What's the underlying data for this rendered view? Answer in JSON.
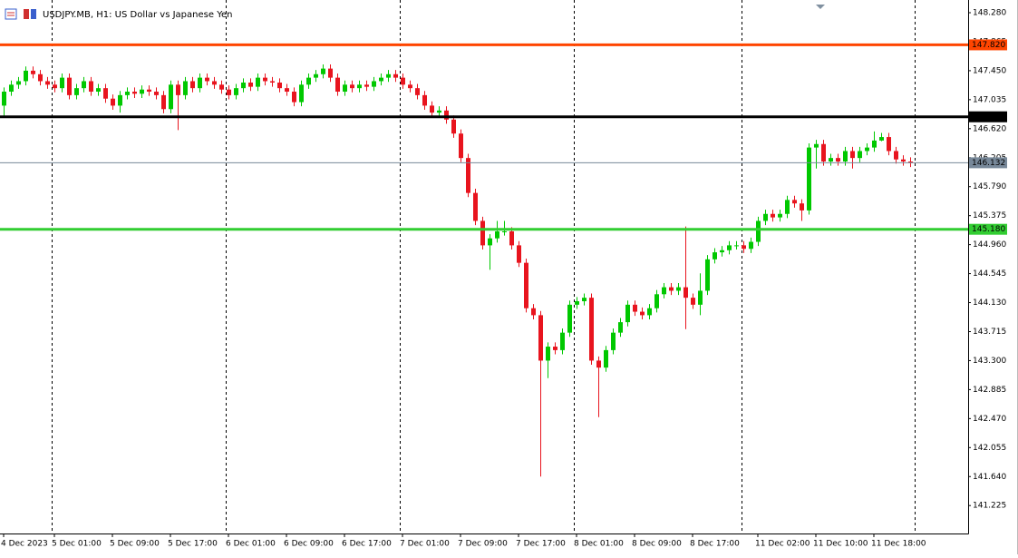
{
  "chart_data": {
    "type": "candlestick",
    "title": "USDJPY.MB, H1:  US Dollar vs Japanese Yen",
    "categories": [
      "4 Dec 2023",
      null,
      null,
      null,
      null,
      null,
      null,
      "5 Dec 01:00",
      null,
      null,
      null,
      null,
      null,
      null,
      null,
      "5 Dec 09:00",
      null,
      null,
      null,
      null,
      null,
      null,
      null,
      "5 Dec 17:00",
      null,
      null,
      null,
      null,
      null,
      null,
      null,
      "6 Dec 01:00",
      null,
      null,
      null,
      null,
      null,
      null,
      null,
      "6 Dec 09:00",
      null,
      null,
      null,
      null,
      null,
      null,
      null,
      "6 Dec 17:00",
      null,
      null,
      null,
      null,
      null,
      null,
      null,
      "7 Dec 01:00",
      null,
      null,
      null,
      null,
      null,
      null,
      null,
      "7 Dec 09:00",
      null,
      null,
      null,
      null,
      null,
      null,
      null,
      "7 Dec 17:00",
      null,
      null,
      null,
      null,
      null,
      null,
      null,
      "8 Dec 01:00",
      null,
      null,
      null,
      null,
      null,
      null,
      null,
      "8 Dec 09:00",
      null,
      null,
      null,
      null,
      null,
      null,
      null,
      "8 Dec 17:00",
      null,
      null,
      null,
      null,
      null,
      null,
      null,
      null,
      "11 Dec 02:00",
      null,
      null,
      null,
      null,
      null,
      null,
      null,
      "11 Dec 10:00",
      null,
      null,
      null,
      null,
      null,
      null,
      null,
      "11 Dec 18:00",
      null,
      null,
      null,
      null,
      null
    ],
    "open": [
      146.95,
      147.15,
      147.25,
      147.3,
      147.45,
      147.4,
      147.3,
      147.25,
      147.2,
      147.35,
      147.1,
      147.2,
      147.3,
      147.15,
      147.2,
      147.05,
      146.95,
      147.1,
      147.15,
      147.12,
      147.18,
      147.15,
      147.1,
      146.9,
      147.25,
      147.1,
      147.3,
      147.2,
      147.35,
      147.3,
      147.25,
      147.18,
      147.1,
      147.2,
      147.28,
      147.22,
      147.35,
      147.3,
      147.28,
      147.2,
      147.15,
      147.0,
      147.25,
      147.35,
      147.4,
      147.48,
      147.35,
      147.15,
      147.25,
      147.2,
      147.25,
      147.22,
      147.3,
      147.35,
      147.4,
      147.35,
      147.25,
      147.2,
      147.1,
      146.95,
      146.85,
      146.88,
      146.75,
      146.55,
      146.2,
      145.7,
      145.3,
      144.95,
      145.05,
      145.15,
      145.15,
      144.95,
      144.7,
      144.05,
      143.95,
      143.3,
      143.5,
      143.45,
      143.7,
      144.1,
      144.15,
      144.2,
      143.3,
      143.2,
      143.45,
      143.7,
      143.85,
      144.1,
      144.0,
      143.95,
      144.05,
      144.25,
      144.35,
      144.3,
      144.35,
      144.2,
      144.1,
      144.3,
      144.75,
      144.85,
      144.88,
      144.95,
      144.95,
      144.9,
      145.0,
      145.3,
      145.4,
      145.35,
      145.4,
      145.6,
      145.55,
      145.45,
      146.35,
      146.4,
      146.15,
      146.2,
      146.15,
      146.3,
      146.2,
      146.3,
      146.35,
      146.45,
      146.5,
      146.3,
      146.18,
      146.15
    ],
    "high": [
      147.21,
      147.31,
      147.36,
      147.51,
      147.51,
      147.46,
      147.36,
      147.31,
      147.41,
      147.41,
      147.26,
      147.36,
      147.36,
      147.26,
      147.26,
      147.11,
      147.16,
      147.21,
      147.21,
      147.24,
      147.24,
      147.21,
      147.16,
      147.31,
      147.31,
      147.36,
      147.36,
      147.41,
      147.41,
      147.36,
      147.31,
      147.24,
      147.26,
      147.34,
      147.34,
      147.41,
      147.41,
      147.36,
      147.34,
      147.26,
      147.21,
      147.31,
      147.41,
      147.46,
      147.54,
      147.54,
      147.41,
      147.31,
      147.31,
      147.31,
      147.31,
      147.36,
      147.41,
      147.46,
      147.46,
      147.41,
      147.31,
      147.26,
      147.16,
      147.01,
      146.94,
      146.94,
      146.81,
      146.61,
      146.26,
      145.76,
      145.36,
      145.11,
      145.3,
      145.3,
      145.21,
      145.01,
      144.76,
      144.11,
      144.01,
      143.56,
      143.56,
      143.76,
      144.16,
      144.21,
      144.26,
      144.26,
      143.36,
      143.51,
      143.76,
      143.91,
      144.16,
      144.16,
      144.06,
      144.11,
      144.31,
      144.41,
      144.41,
      144.41,
      145.22,
      144.26,
      144.55,
      144.81,
      144.91,
      144.94,
      145.01,
      145.01,
      145.01,
      145.06,
      145.36,
      145.46,
      145.46,
      145.46,
      145.66,
      145.66,
      145.61,
      146.41,
      146.46,
      146.46,
      146.26,
      146.26,
      146.36,
      146.36,
      146.36,
      146.41,
      146.58,
      146.56,
      146.56,
      146.36,
      146.24,
      146.21
    ],
    "low": [
      146.8,
      147.09,
      147.19,
      147.24,
      147.34,
      147.24,
      147.19,
      147.14,
      147.14,
      147.04,
      147.04,
      147.14,
      147.09,
      147.09,
      146.99,
      146.89,
      146.85,
      147.04,
      147.06,
      147.06,
      147.09,
      147.04,
      146.84,
      146.84,
      146.6,
      147.04,
      147.14,
      147.14,
      147.24,
      147.19,
      147.12,
      147.04,
      147.04,
      147.14,
      147.16,
      147.16,
      147.24,
      147.22,
      147.14,
      147.09,
      146.94,
      146.94,
      147.19,
      147.29,
      147.34,
      147.29,
      147.09,
      147.09,
      147.14,
      147.14,
      147.16,
      147.16,
      147.24,
      147.29,
      147.29,
      147.19,
      147.14,
      147.04,
      146.89,
      146.79,
      146.79,
      146.69,
      146.49,
      146.14,
      145.64,
      145.24,
      144.89,
      144.6,
      144.99,
      145.09,
      144.89,
      144.64,
      143.99,
      143.89,
      141.64,
      143.05,
      143.39,
      143.39,
      143.64,
      144.04,
      144.09,
      143.24,
      142.49,
      143.14,
      143.39,
      143.64,
      143.79,
      143.94,
      143.89,
      143.89,
      143.99,
      144.19,
      144.24,
      144.24,
      143.75,
      144.04,
      143.95,
      144.24,
      144.69,
      144.79,
      144.82,
      144.89,
      144.84,
      144.84,
      144.94,
      145.24,
      145.29,
      145.29,
      145.34,
      145.49,
      145.3,
      145.39,
      146.05,
      146.09,
      146.09,
      146.09,
      146.09,
      146.05,
      146.14,
      146.24,
      146.29,
      146.44,
      146.24,
      146.12,
      146.09,
      146.07
    ],
    "close": [
      147.15,
      147.25,
      147.3,
      147.45,
      147.4,
      147.3,
      147.25,
      147.2,
      147.35,
      147.1,
      147.2,
      147.3,
      147.15,
      147.2,
      147.05,
      146.95,
      147.1,
      147.15,
      147.12,
      147.18,
      147.15,
      147.1,
      146.9,
      147.25,
      147.1,
      147.3,
      147.2,
      147.35,
      147.3,
      147.25,
      147.18,
      147.1,
      147.2,
      147.28,
      147.22,
      147.35,
      147.3,
      147.28,
      147.2,
      147.15,
      147.0,
      147.25,
      147.35,
      147.4,
      147.48,
      147.35,
      147.15,
      147.25,
      147.2,
      147.25,
      147.22,
      147.3,
      147.35,
      147.4,
      147.35,
      147.25,
      147.2,
      147.1,
      146.95,
      146.85,
      146.88,
      146.75,
      146.55,
      146.2,
      145.7,
      145.3,
      144.95,
      145.05,
      145.15,
      145.15,
      144.95,
      144.7,
      144.05,
      143.95,
      143.3,
      143.5,
      143.45,
      143.7,
      144.1,
      144.15,
      144.2,
      143.3,
      143.2,
      143.45,
      143.7,
      143.85,
      144.1,
      144.0,
      143.95,
      144.05,
      144.25,
      144.35,
      144.3,
      144.35,
      144.2,
      144.1,
      144.3,
      144.75,
      144.85,
      144.88,
      144.95,
      144.95,
      144.9,
      145.0,
      145.3,
      145.4,
      145.35,
      145.4,
      145.6,
      145.55,
      145.45,
      146.35,
      146.4,
      146.15,
      146.2,
      146.15,
      146.3,
      146.2,
      146.3,
      146.35,
      146.45,
      146.5,
      146.3,
      146.18,
      146.15,
      146.13
    ],
    "up_color": "#00c800",
    "down_color": "#e8141e",
    "ylim": [
      140.825,
      148.462
    ],
    "yticks": [
      {
        "value": 148.28,
        "label": "148.280"
      },
      {
        "value": 147.865,
        "label": "147.865"
      },
      {
        "value": 147.45,
        "label": "147.450"
      },
      {
        "value": 147.035,
        "label": "147.035"
      },
      {
        "value": 146.62,
        "label": "146.620"
      },
      {
        "value": 146.205,
        "label": "146.205"
      },
      {
        "value": 145.79,
        "label": "145.790"
      },
      {
        "value": 145.375,
        "label": "145.375"
      },
      {
        "value": 144.96,
        "label": "144.960"
      },
      {
        "value": 144.545,
        "label": "144.545"
      },
      {
        "value": 144.13,
        "label": "144.130"
      },
      {
        "value": 143.715,
        "label": "143.715"
      },
      {
        "value": 143.3,
        "label": "143.300"
      },
      {
        "value": 142.885,
        "label": "142.885"
      },
      {
        "value": 142.47,
        "label": "142.470"
      },
      {
        "value": 142.055,
        "label": "142.055"
      },
      {
        "value": 141.64,
        "label": "141.640"
      },
      {
        "value": 141.225,
        "label": "141.225"
      }
    ],
    "hlines": [
      {
        "value": 147.82,
        "label": "147.820",
        "color": "#ff4500"
      },
      {
        "value": 146.79,
        "label": "146.790",
        "color": "#000000"
      },
      {
        "value": 145.18,
        "label": "145.180",
        "color": "#32cd32"
      },
      {
        "value": 146.132,
        "label": "146.132",
        "color": "#778899"
      }
    ]
  }
}
